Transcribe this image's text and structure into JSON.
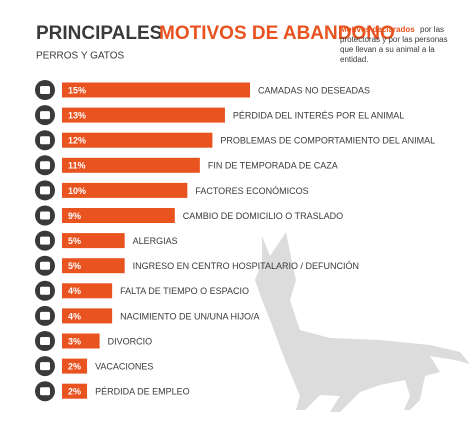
{
  "chart_data": {
    "type": "bar",
    "orientation": "horizontal",
    "title": "PRINCIPALES",
    "title_highlight": "MOTIVOS DE ABANDONO",
    "subtitle": "PERROS Y GATOS",
    "note": {
      "highlight": "Motivos declarados",
      "lines": [
        "por las",
        "protectoras y por las personas",
        "que llevan a su animal a la",
        "entidad."
      ]
    },
    "categories": [
      "CAMADAS NO DESEADAS",
      "PÉRDIDA DEL INTERÉS POR EL ANIMAL",
      "PROBLEMAS DE COMPORTAMIENTO DEL ANIMAL",
      "FIN DE TEMPORADA DE CAZA",
      "FACTORES ECONÓMICOS",
      "CAMBIO DE DOMICILIO O TRASLADO",
      "ALERGIAS",
      "INGRESO EN CENTRO HOSPITALARIO / DEFUNCIÓN",
      "FALTA DE TIEMPO O ESPACIO",
      "NACIMIENTO DE UN/UNA HIJO/A",
      "DIVORCIO",
      "VACACIONES",
      "PÉRDIDA DE EMPLEO"
    ],
    "values": [
      15,
      13,
      12,
      11,
      10,
      9,
      5,
      5,
      4,
      4,
      3,
      2,
      2
    ],
    "value_labels": [
      "15%",
      "13%",
      "12%",
      "11%",
      "10%",
      "9%",
      "5%",
      "5%",
      "4%",
      "4%",
      "3%",
      "2%",
      "2%"
    ],
    "color": "#e8531f"
  }
}
